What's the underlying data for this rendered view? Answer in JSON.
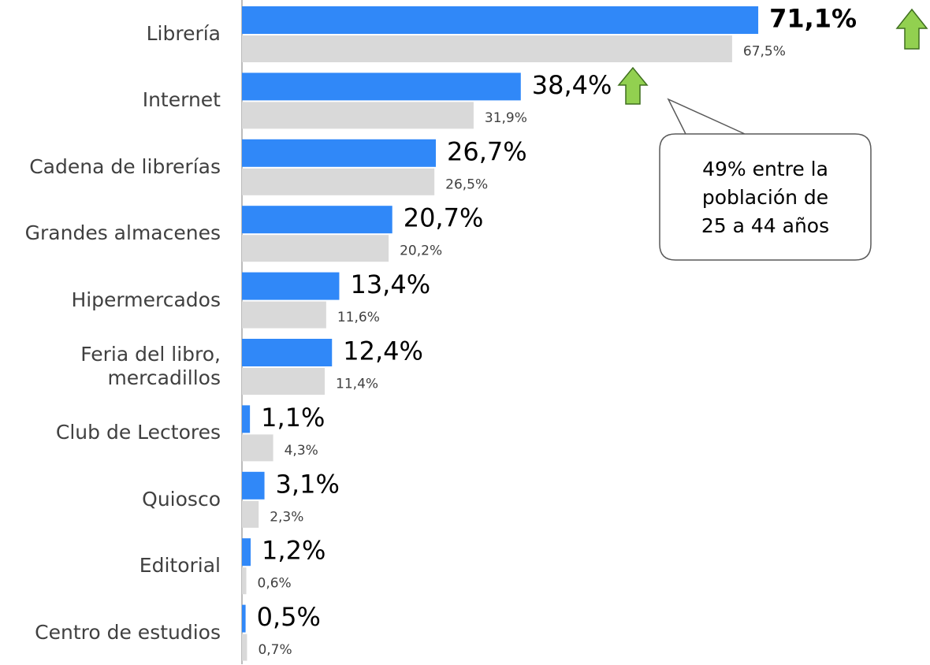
{
  "chart_data": {
    "type": "bar",
    "orientation": "horizontal",
    "categories": [
      "Librería",
      "Internet",
      "Cadena de librerías",
      "Grandes almacenes",
      "Hipermercados",
      "Feria del libro, mercadillos",
      "Club de Lectores",
      "Quiosco",
      "Editorial",
      "Centro de estudios"
    ],
    "series": [
      {
        "color": "#3088f8",
        "values": [
          71.1,
          38.4,
          26.7,
          20.7,
          13.4,
          12.4,
          1.1,
          3.1,
          1.2,
          0.5
        ],
        "value_labels": [
          "71,1%",
          "38,4%",
          "26,7%",
          "20,7%",
          "13,4%",
          "12,4%",
          "1,1%",
          "3,1%",
          "1,2%",
          "0,5%"
        ]
      },
      {
        "color": "#d9d9d9",
        "values": [
          67.5,
          31.9,
          26.5,
          20.2,
          11.6,
          11.4,
          4.3,
          2.3,
          0.6,
          0.7
        ],
        "value_labels": [
          "67,5%",
          "31,9%",
          "26,5%",
          "20,2%",
          "11,6%",
          "11,4%",
          "4,3%",
          "2,3%",
          "0,6%",
          "0,7%"
        ]
      }
    ],
    "xlim": [
      0,
      75
    ],
    "annotation": {
      "lines": [
        "49% entre la",
        "población de",
        "25 a 44 años"
      ]
    }
  }
}
